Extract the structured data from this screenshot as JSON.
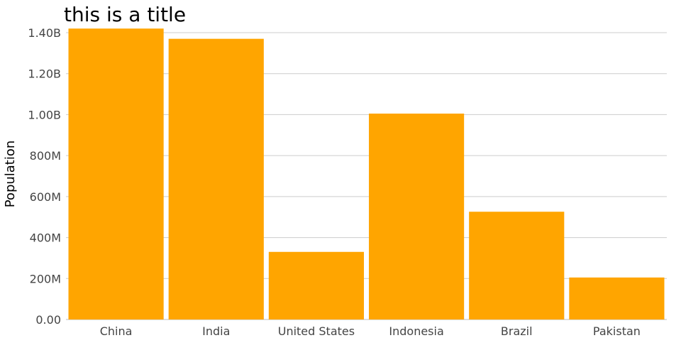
{
  "chart_data": {
    "type": "bar",
    "title": "this is a title",
    "xlabel": "",
    "ylabel": "Population",
    "categories": [
      "China",
      "India",
      "United States",
      "Indonesia",
      "Brazil",
      "Pakistan"
    ],
    "values": [
      1420000000,
      1370000000,
      330000000,
      1005000000,
      526000000,
      205000000
    ],
    "ylim": [
      0,
      1400000000
    ],
    "yticks": [
      0,
      200000000,
      400000000,
      600000000,
      800000000,
      1000000000,
      1200000000,
      1400000000
    ],
    "ytick_labels": [
      "0.00",
      "200M",
      "400M",
      "600M",
      "800M",
      "1.00B",
      "1.20B",
      "1.40B"
    ],
    "bar_color": "#ffa500",
    "grid": true,
    "legend": "none"
  }
}
